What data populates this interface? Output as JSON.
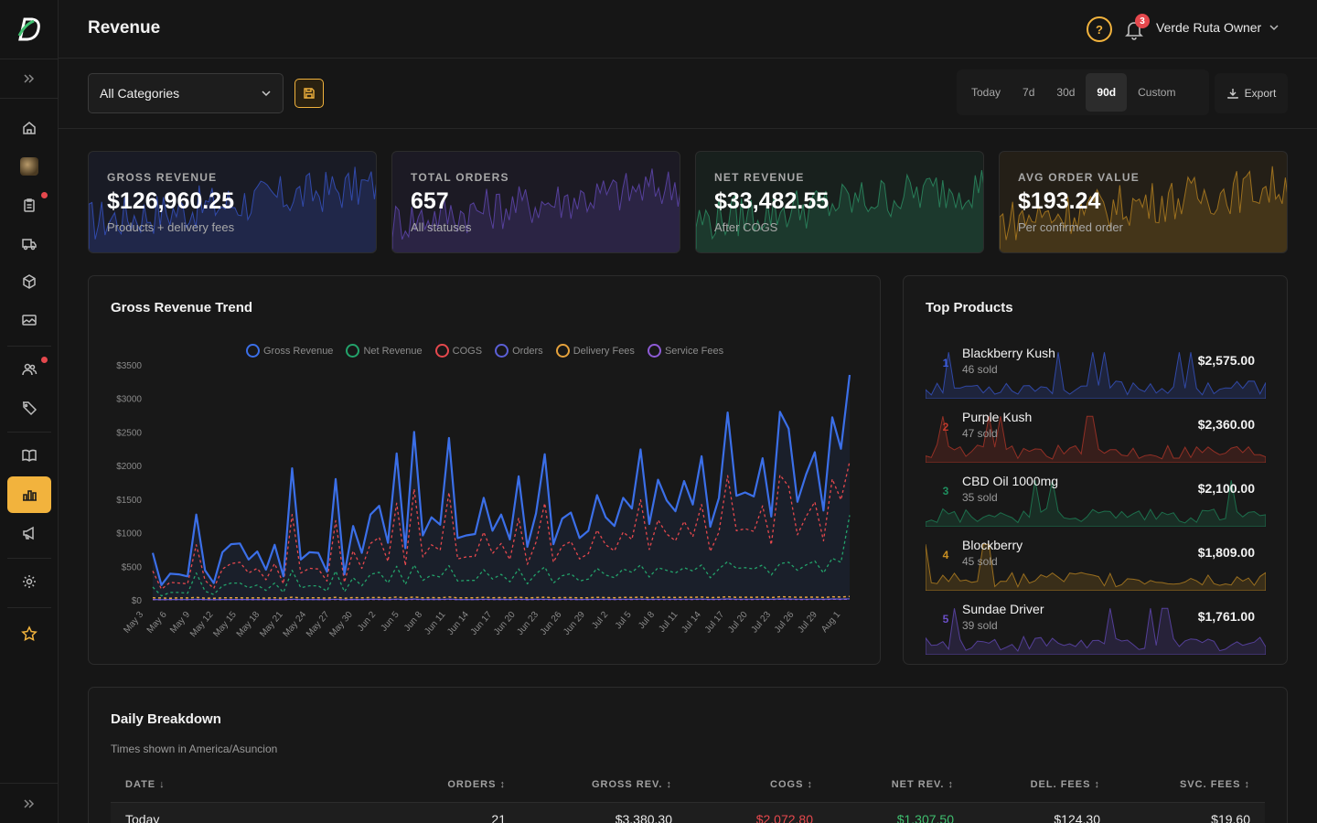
{
  "page": {
    "title": "Revenue"
  },
  "user": {
    "name": "Verde Ruta Owner",
    "notifications": "3"
  },
  "filters": {
    "category": "All Categories",
    "ranges": [
      "Today",
      "7d",
      "30d",
      "90d",
      "Custom"
    ],
    "active_range": "90d",
    "export_label": "Export"
  },
  "stats": [
    {
      "label": "GROSS REVENUE",
      "value": "$126,960.25",
      "sub": "Products + delivery fees",
      "color": "#3b5bdb"
    },
    {
      "label": "TOTAL ORDERS",
      "value": "657",
      "sub": "All statuses",
      "color": "#6b4fc8"
    },
    {
      "label": "NET REVENUE",
      "value": "$33,482.55",
      "sub": "After COGS",
      "color": "#2f9e6e"
    },
    {
      "label": "AVG ORDER VALUE",
      "value": "$193.24",
      "sub": "Per confirmed order",
      "color": "#c98f22"
    }
  ],
  "trend": {
    "title": "Gross Revenue Trend",
    "legend": [
      {
        "name": "Gross Revenue",
        "color": "#3b6fe8"
      },
      {
        "name": "Net Revenue",
        "color": "#23a36b"
      },
      {
        "name": "COGS",
        "color": "#e5484d"
      },
      {
        "name": "Orders",
        "color": "#5b5fd6"
      },
      {
        "name": "Delivery Fees",
        "color": "#e6a23c"
      },
      {
        "name": "Service Fees",
        "color": "#8e5bd6"
      }
    ]
  },
  "chart_data": {
    "type": "line",
    "title": "Gross Revenue Trend",
    "yticks": [
      "$0",
      "$500",
      "$1000",
      "$1500",
      "$2000",
      "$2500",
      "$3000",
      "$3500"
    ],
    "ylim": [
      0,
      3500
    ],
    "xticks": [
      "May 3",
      "May 6",
      "May 9",
      "May 12",
      "May 15",
      "May 18",
      "May 21",
      "May 24",
      "May 27",
      "May 30",
      "Jun 2",
      "Jun 5",
      "Jun 8",
      "Jun 11",
      "Jun 14",
      "Jun 17",
      "Jun 20",
      "Jun 23",
      "Jun 26",
      "Jun 29",
      "Jul 2",
      "Jul 5",
      "Jul 8",
      "Jul 11",
      "Jul 14",
      "Jul 17",
      "Jul 20",
      "Jul 23",
      "Jul 26",
      "Jul 29",
      "Aug 1"
    ],
    "series": [
      {
        "name": "Gross Revenue",
        "values": [
          700,
          220,
          390,
          380,
          350,
          1270,
          440,
          250,
          710,
          830,
          840,
          600,
          720,
          450,
          820,
          350,
          1960,
          600,
          710,
          700,
          420,
          1800,
          380,
          1100,
          700,
          1270,
          1400,
          850,
          2180,
          770,
          2500,
          960,
          1230,
          1120,
          2410,
          920,
          960,
          980,
          1520,
          1030,
          1270,
          900,
          1840,
          790,
          1290,
          2170,
          830,
          1210,
          1300,
          920,
          1030,
          1560,
          1230,
          1100,
          1520,
          1360,
          2240,
          1130,
          1790,
          1480,
          1320,
          1770,
          1420,
          2140,
          1090,
          1520,
          2790,
          1550,
          1600,
          1540,
          2110,
          1240,
          2800,
          2550,
          1460,
          1870,
          2200,
          1330,
          2720,
          2250,
          3350
        ]
      },
      {
        "name": "COGS",
        "values": [
          430,
          160,
          260,
          250,
          240,
          820,
          290,
          170,
          460,
          540,
          560,
          400,
          470,
          300,
          540,
          240,
          1270,
          400,
          470,
          460,
          280,
          1180,
          260,
          730,
          470,
          840,
          930,
          570,
          1440,
          510,
          1650,
          640,
          820,
          740,
          1600,
          610,
          640,
          650,
          1010,
          690,
          840,
          600,
          1220,
          530,
          860,
          1440,
          560,
          800,
          870,
          610,
          690,
          1040,
          820,
          730,
          1010,
          900,
          1490,
          750,
          1190,
          980,
          880,
          1170,
          940,
          1420,
          720,
          1010,
          1850,
          1030,
          1060,
          1020,
          1400,
          820,
          1860,
          1690,
          970,
          1240,
          1460,
          880,
          1800,
          1490,
          2060
        ]
      },
      {
        "name": "Net Revenue",
        "values": [
          190,
          60,
          110,
          110,
          100,
          400,
          130,
          80,
          210,
          250,
          250,
          180,
          220,
          140,
          250,
          110,
          440,
          180,
          210,
          210,
          130,
          430,
          120,
          330,
          210,
          380,
          410,
          250,
          500,
          230,
          520,
          290,
          370,
          340,
          510,
          280,
          290,
          290,
          450,
          310,
          380,
          270,
          460,
          240,
          390,
          490,
          250,
          360,
          390,
          280,
          310,
          470,
          370,
          330,
          460,
          410,
          520,
          340,
          480,
          440,
          400,
          480,
          430,
          520,
          330,
          460,
          570,
          470,
          480,
          460,
          520,
          370,
          540,
          560,
          440,
          520,
          580,
          400,
          620,
          560,
          1260
        ]
      },
      {
        "name": "Delivery Fees",
        "values": [
          30,
          28,
          25,
          30,
          28,
          35,
          26,
          25,
          30,
          32,
          30,
          28,
          30,
          26,
          32,
          25,
          40,
          28,
          30,
          30,
          26,
          38,
          25,
          34,
          30,
          34,
          36,
          30,
          42,
          28,
          44,
          30,
          34,
          32,
          42,
          30,
          30,
          30,
          38,
          32,
          34,
          30,
          40,
          28,
          34,
          40,
          30,
          34,
          34,
          30,
          32,
          38,
          34,
          32,
          38,
          36,
          42,
          32,
          40,
          38,
          36,
          40,
          38,
          42,
          34,
          38,
          46,
          38,
          40,
          38,
          42,
          34,
          46,
          44,
          38,
          40,
          42,
          36,
          46,
          42,
          50
        ]
      },
      {
        "name": "Orders",
        "values": [
          5,
          3,
          4,
          4,
          4,
          8,
          4,
          3,
          5,
          6,
          6,
          5,
          5,
          4,
          6,
          3,
          10,
          5,
          5,
          5,
          4,
          9,
          3,
          7,
          5,
          8,
          8,
          6,
          11,
          5,
          12,
          6,
          8,
          7,
          11,
          6,
          6,
          6,
          9,
          7,
          8,
          6,
          10,
          5,
          8,
          10,
          6,
          8,
          8,
          6,
          7,
          9,
          8,
          7,
          9,
          8,
          11,
          7,
          10,
          9,
          8,
          10,
          9,
          11,
          7,
          9,
          13,
          9,
          10,
          9,
          11,
          8,
          13,
          12,
          9,
          10,
          11,
          8,
          13,
          12,
          15
        ]
      },
      {
        "name": "Service Fees",
        "values": [
          3,
          2,
          3,
          3,
          3,
          5,
          3,
          2,
          4,
          4,
          4,
          3,
          4,
          3,
          4,
          2,
          6,
          3,
          4,
          4,
          3,
          6,
          2,
          5,
          4,
          5,
          5,
          4,
          7,
          3,
          7,
          4,
          5,
          4,
          7,
          4,
          4,
          4,
          6,
          4,
          5,
          4,
          6,
          3,
          5,
          6,
          4,
          5,
          5,
          4,
          4,
          6,
          5,
          4,
          6,
          5,
          7,
          4,
          6,
          6,
          5,
          6,
          5,
          7,
          4,
          6,
          8,
          6,
          6,
          6,
          7,
          5,
          8,
          7,
          6,
          6,
          7,
          5,
          8,
          7,
          9
        ]
      }
    ]
  },
  "top_products": {
    "title": "Top Products",
    "items": [
      {
        "rank": "1",
        "name": "Blackberry Kush",
        "sold": "46 sold",
        "amount": "$2,575.00",
        "color": "#3b5bdb"
      },
      {
        "rank": "2",
        "name": "Purple Kush",
        "sold": "47 sold",
        "amount": "$2,360.00",
        "color": "#c0392b"
      },
      {
        "rank": "3",
        "name": "CBD Oil 1000mg",
        "sold": "35 sold",
        "amount": "$2,100.00",
        "color": "#1f8f5f"
      },
      {
        "rank": "4",
        "name": "Blockberry",
        "sold": "45 sold",
        "amount": "$1,809.00",
        "color": "#c98f22"
      },
      {
        "rank": "5",
        "name": "Sundae Driver",
        "sold": "39 sold",
        "amount": "$1,761.00",
        "color": "#6b4fc8"
      }
    ]
  },
  "daily": {
    "title": "Daily Breakdown",
    "subtitle": "Times shown in America/Asuncion",
    "columns": [
      "DATE ↓",
      "ORDERS ↕",
      "GROSS REV. ↕",
      "COGS ↕",
      "NET REV. ↕",
      "DEL. FEES ↕",
      "SVC. FEES ↕"
    ],
    "rows": [
      {
        "date": "Today",
        "orders": "21",
        "gross": "$3,380.30",
        "cogs": "$2,072.80",
        "net": "$1,307.50",
        "del": "$124.30",
        "svc": "$19.60"
      }
    ]
  }
}
